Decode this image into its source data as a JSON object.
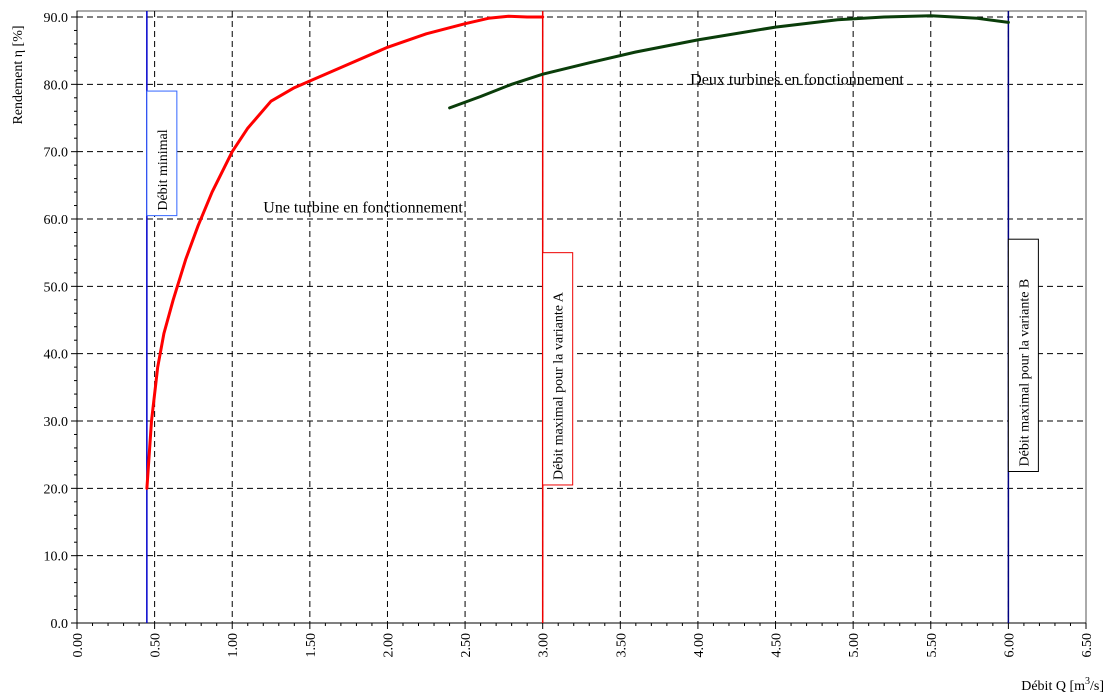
{
  "chart_data": {
    "type": "line",
    "xlabel": "Débit Q [m³/s]",
    "xlabel_parts": {
      "main": "Débit Q [m",
      "sup": "3",
      "tail": "/s]"
    },
    "ylabel": "Rendement η [%]",
    "xlim": [
      0,
      6.5
    ],
    "ylim": [
      0,
      90
    ],
    "x_ticks": [
      "0.00",
      "0.50",
      "1.00",
      "1.50",
      "2.00",
      "2.50",
      "3.00",
      "3.50",
      "4.00",
      "4.50",
      "5.00",
      "5.50",
      "6.00",
      "6.50"
    ],
    "y_ticks": [
      "0.0",
      "10.0",
      "20.0",
      "30.0",
      "40.0",
      "50.0",
      "60.0",
      "70.0",
      "80.0",
      "90.0"
    ],
    "grid": true,
    "series": [
      {
        "color": "#ff0000",
        "points": [
          [
            0.45,
            20
          ],
          [
            0.48,
            30
          ],
          [
            0.52,
            38
          ],
          [
            0.56,
            43
          ],
          [
            0.62,
            48
          ],
          [
            0.7,
            54
          ],
          [
            0.78,
            59
          ],
          [
            0.87,
            64
          ],
          [
            1.0,
            70
          ],
          [
            1.1,
            73.5
          ],
          [
            1.25,
            77.5
          ],
          [
            1.4,
            79.5
          ],
          [
            1.55,
            81
          ],
          [
            1.75,
            83
          ],
          [
            2.0,
            85.5
          ],
          [
            2.25,
            87.5
          ],
          [
            2.5,
            89
          ],
          [
            2.65,
            89.8
          ],
          [
            2.78,
            90.1
          ],
          [
            2.9,
            90.0
          ],
          [
            3.0,
            90.0
          ]
        ]
      },
      {
        "color": "#0a3d0a",
        "points": [
          [
            2.4,
            76.5
          ],
          [
            2.6,
            78.2
          ],
          [
            2.8,
            80.0
          ],
          [
            3.0,
            81.5
          ],
          [
            3.3,
            83.2
          ],
          [
            3.6,
            84.8
          ],
          [
            4.0,
            86.6
          ],
          [
            4.5,
            88.5
          ],
          [
            4.9,
            89.6
          ],
          [
            5.2,
            90.0
          ],
          [
            5.5,
            90.2
          ],
          [
            5.8,
            89.8
          ],
          [
            6.0,
            89.2
          ]
        ]
      }
    ],
    "vertical_lines": [
      {
        "x": 0.45,
        "color": "#0000cc",
        "label": "Débit minimal",
        "label_y_top": 79,
        "label_y_bottom": 60.5,
        "box_color": "#3366ff"
      },
      {
        "x": 3.0,
        "color": "#ee0000",
        "label": "Débit maximal pour la variante A",
        "label_y_top": 55,
        "label_y_bottom": 20.5,
        "box_color": "#ee0000"
      },
      {
        "x": 6.0,
        "color": "#000080",
        "label": "Débit maximal pour la variante B",
        "label_y_top": 57,
        "label_y_bottom": 22.5,
        "box_color": "#000000"
      }
    ],
    "annotations": [
      {
        "text": "Une turbine en fonctionnement",
        "x": 1.2,
        "y": 61.0
      },
      {
        "text": "Deux turbines en fonctionnement",
        "x": 3.95,
        "y": 80.0
      }
    ]
  }
}
